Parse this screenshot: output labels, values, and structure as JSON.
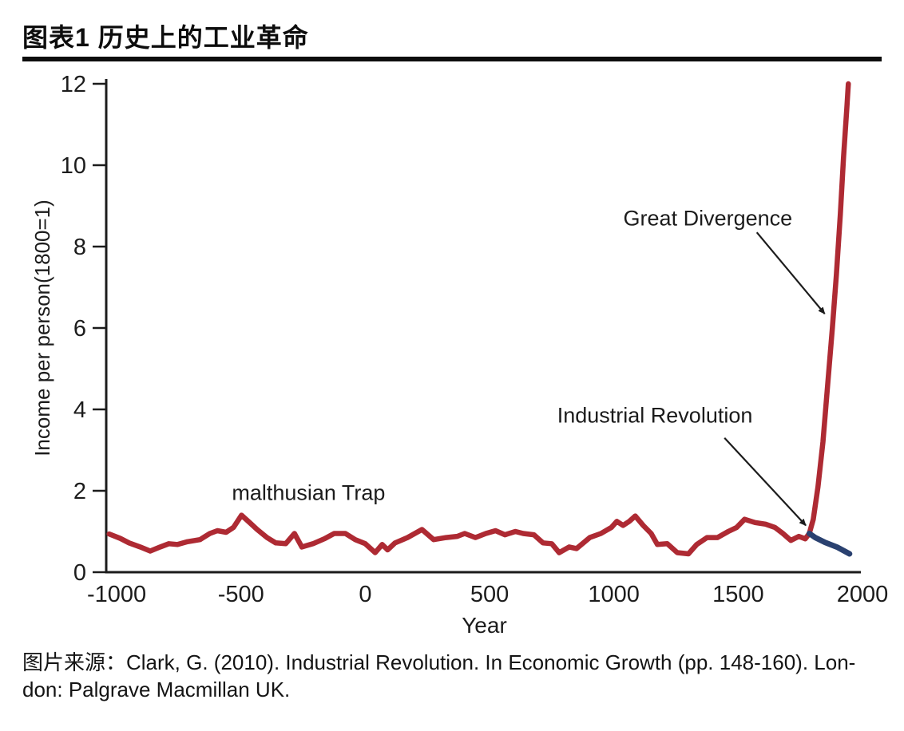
{
  "header": {
    "title": "图表1 历史上的工业革命"
  },
  "source": {
    "line1": "图片来源：Clark, G. (2010). Industrial Revolution. In Economic Growth (pp. 148-160). Lon-",
    "line2": "don: Palgrave Macmillan UK."
  },
  "chart_data": {
    "type": "line",
    "title": "",
    "xlabel": "Year",
    "ylabel": "Income per person(1800=1)",
    "xlim": [
      -1042,
      2000
    ],
    "ylim": [
      0,
      12
    ],
    "xticks": [
      -1000,
      -500,
      0,
      500,
      1000,
      1500,
      2000
    ],
    "yticks": [
      0,
      2,
      4,
      6,
      8,
      10,
      12
    ],
    "grid": false,
    "legend": "none",
    "axis_color": "#1c1c1c",
    "series": [
      {
        "name": "world-income-red",
        "color": "#ae2a33",
        "width": 6.5,
        "points": [
          [
            -1030,
            0.94
          ],
          [
            -985,
            0.83
          ],
          [
            -950,
            0.72
          ],
          [
            -905,
            0.62
          ],
          [
            -865,
            0.52
          ],
          [
            -825,
            0.62
          ],
          [
            -790,
            0.7
          ],
          [
            -755,
            0.68
          ],
          [
            -715,
            0.75
          ],
          [
            -665,
            0.8
          ],
          [
            -625,
            0.95
          ],
          [
            -595,
            1.02
          ],
          [
            -560,
            0.98
          ],
          [
            -530,
            1.1
          ],
          [
            -498,
            1.4
          ],
          [
            -465,
            1.22
          ],
          [
            -435,
            1.05
          ],
          [
            -395,
            0.85
          ],
          [
            -360,
            0.72
          ],
          [
            -320,
            0.7
          ],
          [
            -285,
            0.95
          ],
          [
            -255,
            0.62
          ],
          [
            -210,
            0.7
          ],
          [
            -165,
            0.82
          ],
          [
            -125,
            0.95
          ],
          [
            -80,
            0.95
          ],
          [
            -40,
            0.8
          ],
          [
            0,
            0.7
          ],
          [
            40,
            0.48
          ],
          [
            68,
            0.68
          ],
          [
            90,
            0.55
          ],
          [
            120,
            0.72
          ],
          [
            170,
            0.85
          ],
          [
            228,
            1.05
          ],
          [
            275,
            0.8
          ],
          [
            325,
            0.85
          ],
          [
            370,
            0.88
          ],
          [
            400,
            0.95
          ],
          [
            443,
            0.85
          ],
          [
            485,
            0.95
          ],
          [
            524,
            1.02
          ],
          [
            562,
            0.92
          ],
          [
            604,
            1.0
          ],
          [
            635,
            0.95
          ],
          [
            678,
            0.92
          ],
          [
            715,
            0.72
          ],
          [
            750,
            0.7
          ],
          [
            780,
            0.48
          ],
          [
            820,
            0.62
          ],
          [
            850,
            0.58
          ],
          [
            903,
            0.85
          ],
          [
            948,
            0.95
          ],
          [
            990,
            1.1
          ],
          [
            1012,
            1.25
          ],
          [
            1037,
            1.15
          ],
          [
            1062,
            1.25
          ],
          [
            1086,
            1.38
          ],
          [
            1118,
            1.15
          ],
          [
            1150,
            0.95
          ],
          [
            1175,
            0.68
          ],
          [
            1215,
            0.7
          ],
          [
            1255,
            0.48
          ],
          [
            1300,
            0.45
          ],
          [
            1333,
            0.68
          ],
          [
            1375,
            0.85
          ],
          [
            1417,
            0.85
          ],
          [
            1460,
            1.0
          ],
          [
            1494,
            1.1
          ],
          [
            1526,
            1.3
          ],
          [
            1568,
            1.22
          ],
          [
            1610,
            1.18
          ],
          [
            1648,
            1.1
          ],
          [
            1680,
            0.95
          ],
          [
            1712,
            0.78
          ],
          [
            1744,
            0.88
          ],
          [
            1770,
            0.82
          ],
          [
            1786,
            0.95
          ],
          [
            1802,
            1.3
          ],
          [
            1821,
            2.1
          ],
          [
            1841,
            3.2
          ],
          [
            1860,
            4.6
          ],
          [
            1879,
            6.0
          ],
          [
            1895,
            7.3
          ],
          [
            1911,
            8.8
          ],
          [
            1924,
            10.2
          ],
          [
            1937,
            11.4
          ],
          [
            1943,
            12.0
          ]
        ]
      },
      {
        "name": "malthusian-continuation-blue",
        "color": "#2a4170",
        "width": 7,
        "points": [
          [
            1786,
            0.95
          ],
          [
            1810,
            0.85
          ],
          [
            1850,
            0.73
          ],
          [
            1900,
            0.61
          ],
          [
            1948,
            0.45
          ]
        ]
      }
    ],
    "annotations": [
      {
        "id": "malthusian-trap",
        "text": "malthusian Trap",
        "x": -228,
        "y": 1.95,
        "arrow": null
      },
      {
        "id": "industrial-revolution",
        "text": "Industrial Revolution",
        "x": 1165,
        "y": 3.85,
        "arrow": {
          "from": [
            1445,
            3.3
          ],
          "to": [
            1772,
            1.15
          ]
        }
      },
      {
        "id": "great-divergence",
        "text": "Great Divergence",
        "x": 1378,
        "y": 8.7,
        "arrow": {
          "from": [
            1575,
            8.35
          ],
          "to": [
            1848,
            6.35
          ]
        }
      }
    ]
  }
}
